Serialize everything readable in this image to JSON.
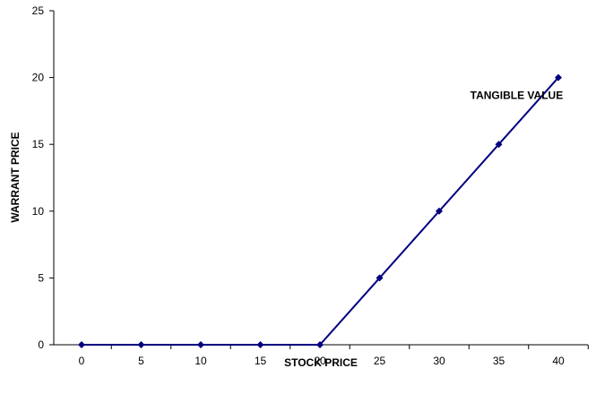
{
  "chart_data": {
    "type": "line",
    "title": "",
    "xlabel": "STOCK PRICE",
    "ylabel": "WARRANT PRICE",
    "x": [
      0,
      5,
      10,
      15,
      20,
      25,
      30,
      35,
      40
    ],
    "series": [
      {
        "values": [
          0,
          0,
          0,
          0,
          0,
          5,
          10,
          15,
          20
        ],
        "color": "#000080"
      }
    ],
    "xlim": [
      0,
      40
    ],
    "ylim": [
      0,
      25
    ],
    "yticks": [
      0,
      5,
      10,
      15,
      20,
      25
    ],
    "grid": false,
    "legend": "none",
    "annotations": [
      {
        "text": "TANGIBLE VALUE",
        "x": 36.5,
        "y": 20
      }
    ]
  }
}
